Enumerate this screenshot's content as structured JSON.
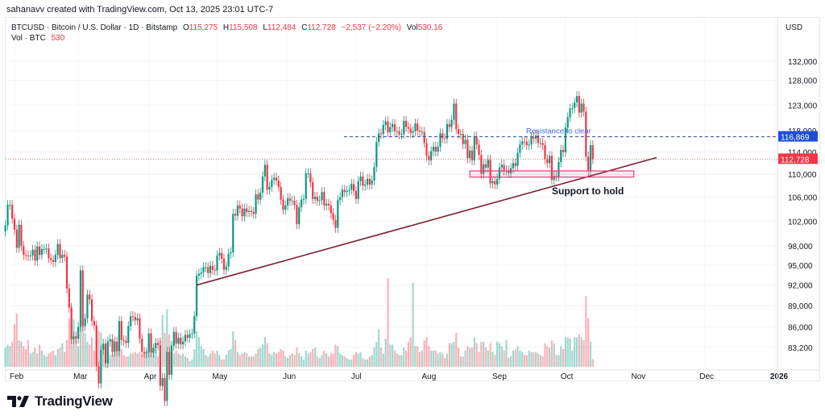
{
  "credit": "sahanavv created with TradingView.com, Oct 13, 2025 23:01 UTC-7",
  "legend": {
    "symbol": "BTCUSD · Bitcoin / U.S. Dollar · 1D · Bitstamp",
    "o_label": "O",
    "o": "115,275",
    "h_label": "H",
    "h": "115,508",
    "l_label": "L",
    "l": "112,484",
    "c_label": "C",
    "c": "112,728",
    "change": "−2,537 (−2.20%)",
    "vol_label": "Vol",
    "vol": "530.16",
    "vol_series": "Vol · BTC",
    "vol_value": "530"
  },
  "footer": {
    "logo": "TradingView"
  },
  "colors": {
    "up": "#089981",
    "down": "#f23645",
    "trendline": "#7b1f2e",
    "resistance": "#2f4a8a",
    "support_box": "#e0407a",
    "price_badge": "#f23645",
    "resistance_badge": "#1e4ed8"
  },
  "chart_data": {
    "type": "candlestick",
    "scale": "log",
    "currency": "USD",
    "start_date": "2025-01-28",
    "end_date": "2025-10-13",
    "interval": "1D",
    "ylim": [
      80000,
      135000
    ],
    "y_ticks": [
      "132,000",
      "128,000",
      "123,000",
      "118,000",
      "114,000",
      "110,000",
      "106,000",
      "102,000",
      "98,000",
      "95,000",
      "92,000",
      "89,000",
      "86,000",
      "83,200"
    ],
    "y_tick_values": [
      132000,
      128000,
      123000,
      118000,
      114000,
      110000,
      106000,
      102000,
      98000,
      95000,
      92000,
      89000,
      86000,
      83200
    ],
    "x_ticks": [
      "Feb",
      "Mar",
      "Apr",
      "May",
      "Jun",
      "Jul",
      "Aug",
      "Sep",
      "Oct",
      "Nov",
      "Dec",
      "2026"
    ],
    "x_tick_dates": [
      "2025-02-01",
      "2025-03-01",
      "2025-04-01",
      "2025-05-01",
      "2025-06-01",
      "2025-07-01",
      "2025-08-01",
      "2025-09-01",
      "2025-10-01",
      "2025-11-01",
      "2025-12-01",
      "2026-01-01"
    ],
    "last_price": 112728,
    "last_price_label": "112,728",
    "grid": true,
    "closes_k": [
      101.3,
      104.7,
      104.7,
      102.4,
      100.6,
      97.7,
      101.4,
      98.0,
      96.6,
      96.5,
      96.4,
      96.5,
      97.4,
      95.7,
      97.9,
      96.6,
      97.5,
      97.5,
      97.6,
      96.1,
      95.8,
      95.5,
      96.6,
      98.3,
      96.1,
      96.6,
      96.3,
      91.5,
      88.7,
      84.3,
      84.7,
      84.4,
      86.0,
      94.2,
      86.1,
      87.2,
      90.6,
      89.9,
      86.8,
      86.2,
      80.7,
      78.5,
      82.9,
      83.7,
      81.1,
      84.0,
      84.3,
      82.6,
      84.0,
      82.7,
      86.8,
      84.2,
      84.1,
      83.8,
      86.1,
      87.5,
      87.4,
      86.9,
      87.2,
      84.4,
      82.6,
      82.4,
      82.5,
      85.1,
      82.5,
      83.1,
      83.8,
      83.5,
      78.2,
      79.2,
      76.3,
      82.6,
      79.6,
      83.4,
      85.3,
      83.7,
      84.5,
      83.6,
      84.0,
      84.9,
      84.5,
      85.0,
      85.1,
      87.5,
      93.4,
      93.7,
      93.9,
      94.7,
      94.7,
      93.8,
      94.9,
      94.3,
      94.2,
      96.5,
      96.9,
      96.0,
      94.3,
      94.8,
      96.8,
      97.0,
      103.2,
      102.9,
      104.6,
      104.1,
      102.8,
      104.1,
      103.5,
      103.7,
      103.5,
      103.2,
      106.5,
      105.6,
      106.8,
      109.6,
      111.7,
      107.3,
      107.8,
      109.0,
      109.4,
      108.9,
      107.8,
      105.6,
      103.9,
      104.6,
      105.8,
      105.4,
      105.4,
      104.7,
      101.5,
      104.3,
      105.6,
      105.7,
      110.2,
      110.2,
      108.6,
      105.7,
      106.1,
      105.4,
      105.5,
      106.9,
      104.6,
      104.9,
      104.6,
      103.3,
      102.2,
      100.9,
      105.5,
      106.0,
      107.3,
      106.9,
      107.1,
      107.3,
      108.3,
      107.1,
      105.7,
      108.8,
      109.6,
      108.0,
      108.2,
      109.2,
      108.2,
      108.9,
      111.3,
      115.9,
      117.5,
      117.4,
      119.1,
      119.8,
      117.7,
      118.7,
      119.3,
      117.9,
      117.9,
      117.3,
      117.4,
      119.9,
      118.7,
      118.4,
      117.6,
      117.9,
      119.4,
      118.0,
      117.8,
      117.8,
      115.7,
      113.3,
      112.5,
      114.2,
      115.0,
      114.1,
      115.0,
      117.5,
      116.6,
      116.5,
      119.3,
      118.7,
      120.1,
      123.3,
      118.3,
      117.4,
      117.4,
      115.5,
      116.3,
      112.9,
      114.3,
      112.5,
      116.9,
      115.4,
      113.5,
      110.1,
      111.8,
      111.2,
      112.6,
      108.4,
      108.8,
      108.2,
      109.2,
      111.2,
      111.7,
      110.7,
      110.7,
      110.2,
      111.1,
      112.0,
      111.5,
      113.9,
      115.4,
      116.0,
      115.9,
      115.3,
      115.4,
      116.8,
      116.5,
      117.1,
      115.7,
      115.7,
      115.3,
      112.7,
      112.0,
      113.3,
      109.0,
      109.7,
      109.6,
      112.2,
      114.4,
      114.0,
      118.6,
      120.6,
      122.3,
      122.4,
      123.5,
      124.8,
      121.5,
      123.3,
      121.7,
      113.2,
      110.6,
      115.3,
      112.7
    ],
    "volume_btc": [
      1300,
      1500,
      1400,
      1700,
      2900,
      3600,
      1800,
      1700,
      1400,
      1200,
      1800,
      900,
      1000,
      1300,
      900,
      1500,
      1100,
      800,
      700,
      900,
      1000,
      1100,
      800,
      1200,
      1300,
      1600,
      1000,
      1800,
      3300,
      4100,
      3200,
      2100,
      1400,
      2900,
      3000,
      2300,
      1700,
      1500,
      2000,
      1100,
      1800,
      2400,
      2300,
      1500,
      1300,
      1200,
      800,
      900,
      1000,
      1100,
      1600,
      1200,
      800,
      700,
      700,
      900,
      900,
      1000,
      900,
      1000,
      800,
      900,
      1100,
      1000,
      1600,
      1300,
      1200,
      700,
      2000,
      3500,
      2300,
      3900,
      2200,
      1500,
      900,
      1100,
      900,
      800,
      900,
      700,
      600,
      400,
      500,
      1200,
      2400,
      2000,
      1400,
      1200,
      800,
      700,
      900,
      1100,
      900,
      1100,
      800,
      500,
      500,
      800,
      1100,
      1200,
      2400,
      1800,
      1000,
      800,
      900,
      1000,
      900,
      700,
      700,
      700,
      900,
      1200,
      1300,
      1500,
      2000,
      1600,
      900,
      800,
      1000,
      900,
      1000,
      1200,
      1100,
      700,
      600,
      800,
      900,
      800,
      1300,
      900,
      700,
      500,
      1100,
      900,
      1000,
      1200,
      1300,
      700,
      600,
      800,
      1100,
      900,
      700,
      900,
      900,
      1500,
      1400,
      900,
      800,
      700,
      600,
      500,
      500,
      800,
      1000,
      900,
      1000,
      600,
      500,
      500,
      700,
      800,
      1300,
      1700,
      2500,
      1300,
      900,
      1900,
      6000,
      1500,
      1500,
      1100,
      900,
      800,
      800,
      1300,
      1100,
      1700,
      2000,
      5700,
      1400,
      1400,
      1000,
      1100,
      1800,
      2000,
      1400,
      1100,
      1100,
      1100,
      900,
      1000,
      900,
      600,
      900,
      1600,
      1600,
      1700,
      2300,
      1300,
      700,
      700,
      1100,
      1400,
      1300,
      1300,
      2000,
      1600,
      1000,
      1700,
      1700,
      1300,
      1100,
      1600,
      1000,
      800,
      1700,
      1600,
      1400,
      1100,
      1800,
      600,
      700,
      1100,
      1200,
      1400,
      1100,
      1000,
      800,
      800,
      1100,
      1000,
      1000,
      1000,
      900,
      800,
      700,
      1600,
      1400,
      1300,
      1800,
      1600,
      800,
      800,
      1400,
      1200,
      2000,
      2000,
      1900,
      1100,
      2000,
      2000,
      2200,
      2000,
      1800,
      4800,
      3300,
      1700,
      530
    ],
    "annotations": {
      "resistance": {
        "label": "Resistance to clear",
        "price": 116869,
        "price_label": "116,869",
        "from": "2025-07-01"
      },
      "support": {
        "label": "Support to hold",
        "price_low": 109500,
        "price_high": 110600,
        "from": "2025-08-20",
        "to": "2025-10-31"
      },
      "trendline": {
        "from_date": "2025-04-22",
        "from_price": 92000,
        "to_date": "2025-11-10",
        "to_price": 113000
      }
    }
  }
}
